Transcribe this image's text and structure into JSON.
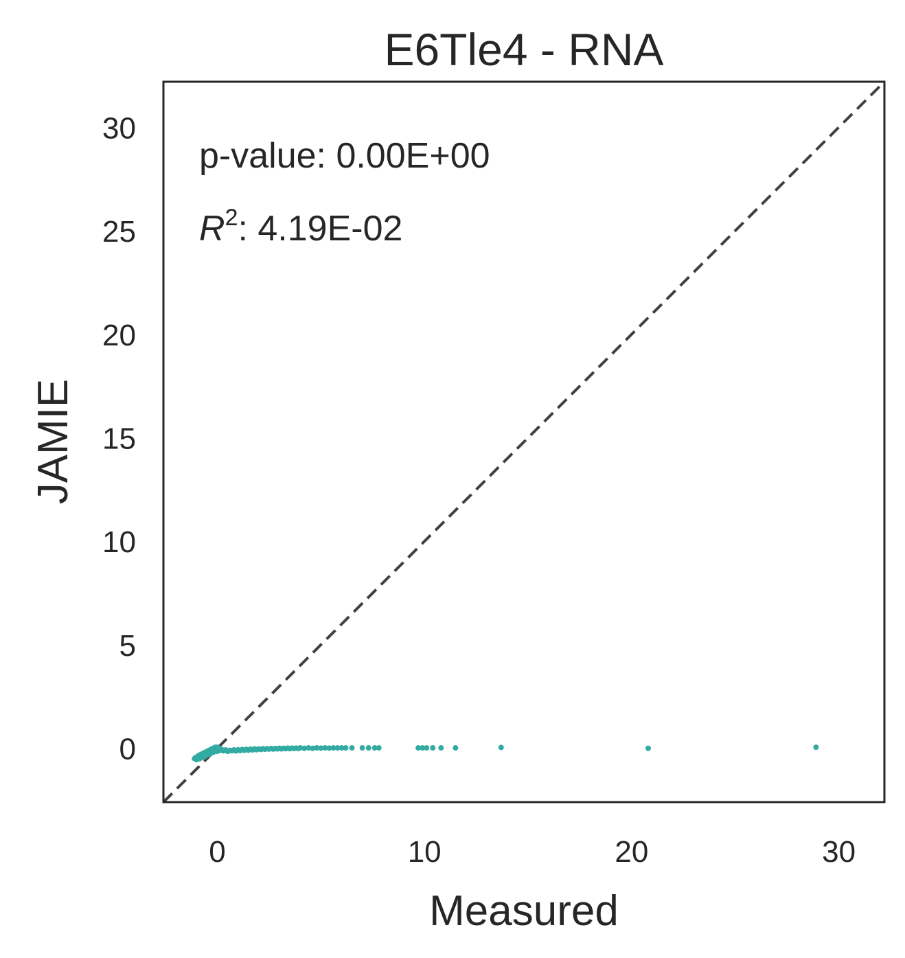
{
  "chart_data": {
    "type": "scatter",
    "title": "E6Tle4 - RNA",
    "xlabel": "Measured",
    "ylabel": "JAMIE",
    "xlim": [
      -2.6,
      32.2
    ],
    "ylim": [
      -2.6,
      32.2
    ],
    "xticks": [
      0,
      10,
      20,
      30
    ],
    "yticks": [
      0,
      5,
      10,
      15,
      20,
      25,
      30
    ],
    "grid": false,
    "legend": "none",
    "point_color": "#33aba2",
    "reference_line": {
      "style": "dashed",
      "color": "#404040",
      "from": [
        -2.6,
        -2.6
      ],
      "to": [
        32.2,
        32.2
      ]
    },
    "annotations": {
      "pvalue_label": "p-value: 0.00E+00",
      "r2_symbol": "R",
      "r2_exponent": "2",
      "r2_value": ": 4.19E-02"
    },
    "points": [
      [
        -1.1,
        -0.5
      ],
      [
        -1.05,
        -0.45
      ],
      [
        -1.0,
        -0.55
      ],
      [
        -0.95,
        -0.4
      ],
      [
        -0.9,
        -0.35
      ],
      [
        -0.85,
        -0.5
      ],
      [
        -0.8,
        -0.3
      ],
      [
        -0.75,
        -0.45
      ],
      [
        -0.7,
        -0.25
      ],
      [
        -0.65,
        -0.4
      ],
      [
        -0.6,
        -0.2
      ],
      [
        -0.55,
        -0.35
      ],
      [
        -0.5,
        -0.15
      ],
      [
        -0.45,
        -0.3
      ],
      [
        -0.4,
        -0.1
      ],
      [
        -0.35,
        -0.25
      ],
      [
        -0.3,
        -0.05
      ],
      [
        -0.25,
        -0.2
      ],
      [
        -0.2,
        0.0
      ],
      [
        -0.15,
        -0.15
      ],
      [
        -0.1,
        0.05
      ],
      [
        -0.05,
        -0.1
      ],
      [
        0.0,
        0.05
      ],
      [
        0.05,
        -0.05
      ],
      [
        0.1,
        0.0
      ],
      [
        0.15,
        -0.1
      ],
      [
        -0.6,
        -0.4
      ],
      [
        -0.4,
        -0.3
      ],
      [
        -0.2,
        -0.2
      ],
      [
        0.0,
        -0.15
      ],
      [
        0.2,
        -0.05
      ],
      [
        0.3,
        -0.12
      ],
      [
        0.4,
        -0.08
      ],
      [
        0.5,
        -0.15
      ],
      [
        0.6,
        -0.1
      ],
      [
        0.7,
        -0.12
      ],
      [
        0.8,
        -0.08
      ],
      [
        0.9,
        -0.13
      ],
      [
        1.0,
        -0.07
      ],
      [
        1.1,
        -0.11
      ],
      [
        1.2,
        -0.06
      ],
      [
        1.3,
        -0.1
      ],
      [
        1.4,
        -0.05
      ],
      [
        1.5,
        -0.09
      ],
      [
        1.6,
        -0.04
      ],
      [
        1.7,
        -0.08
      ],
      [
        1.8,
        -0.03
      ],
      [
        1.9,
        -0.07
      ],
      [
        2.0,
        -0.03
      ],
      [
        2.1,
        -0.06
      ],
      [
        2.2,
        -0.02
      ],
      [
        2.3,
        -0.05
      ],
      [
        2.4,
        -0.02
      ],
      [
        2.5,
        -0.04
      ],
      [
        2.6,
        -0.01
      ],
      [
        2.7,
        -0.04
      ],
      [
        2.8,
        -0.01
      ],
      [
        2.9,
        -0.03
      ],
      [
        3.0,
        0.0
      ],
      [
        3.1,
        -0.03
      ],
      [
        3.2,
        0.0
      ],
      [
        3.3,
        -0.02
      ],
      [
        3.4,
        0.01
      ],
      [
        3.5,
        -0.02
      ],
      [
        3.6,
        0.01
      ],
      [
        3.7,
        -0.01
      ],
      [
        3.8,
        0.01
      ],
      [
        3.9,
        -0.01
      ],
      [
        4.0,
        0.02
      ],
      [
        4.2,
        0.0
      ],
      [
        4.4,
        0.02
      ],
      [
        4.6,
        0.0
      ],
      [
        4.8,
        0.02
      ],
      [
        5.0,
        0.01
      ],
      [
        5.2,
        0.02
      ],
      [
        5.4,
        0.01
      ],
      [
        5.6,
        0.02
      ],
      [
        5.8,
        0.02
      ],
      [
        6.0,
        0.02
      ],
      [
        6.2,
        0.02
      ],
      [
        6.5,
        0.02
      ],
      [
        7.0,
        0.02
      ],
      [
        7.3,
        0.02
      ],
      [
        7.6,
        0.02
      ],
      [
        7.8,
        0.02
      ],
      [
        9.7,
        0.02
      ],
      [
        9.9,
        0.02
      ],
      [
        10.1,
        0.02
      ],
      [
        10.4,
        0.02
      ],
      [
        10.8,
        0.02
      ],
      [
        11.5,
        0.02
      ],
      [
        13.7,
        0.04
      ],
      [
        20.8,
        0.0
      ],
      [
        28.9,
        0.05
      ]
    ]
  }
}
